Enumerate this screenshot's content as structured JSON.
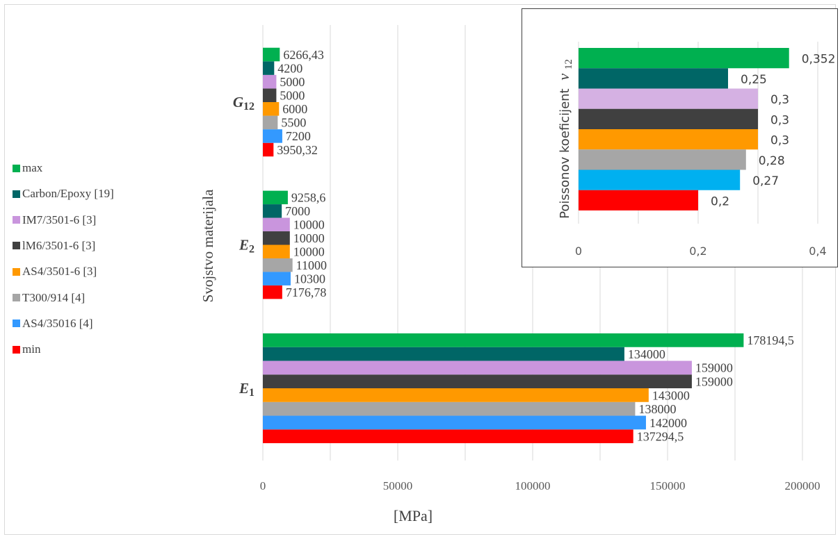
{
  "chart_data": [
    {
      "type": "bar",
      "orientation": "horizontal",
      "categories": [
        "E1",
        "E2",
        "G12"
      ],
      "category_labels": [
        {
          "base": "E",
          "sub": "1"
        },
        {
          "base": "E",
          "sub": "2"
        },
        {
          "base": "G",
          "sub": "12"
        }
      ],
      "ylabel": "Svojstvo materijala",
      "xlabel": "[MPa]",
      "xlim": [
        0,
        200000
      ],
      "xticks": [
        0,
        50000,
        100000,
        150000,
        200000
      ],
      "xtick_labels": [
        "0",
        "50000",
        "100000",
        "150000",
        "200000"
      ],
      "grid": true,
      "legend_position": "left",
      "series": [
        {
          "name": "min",
          "color": "#ff0000",
          "values": [
            137294.5,
            7176.78,
            3950.32
          ],
          "labels": [
            "137294,5",
            "7176,78",
            "3950,32"
          ]
        },
        {
          "name": "AS4/35016 [4]",
          "color": "#3399ff",
          "values": [
            142000,
            10300,
            7200
          ],
          "labels": [
            "142000",
            "10300",
            "7200"
          ]
        },
        {
          "name": "T300/914 [4]",
          "color": "#a6a6a6",
          "values": [
            138000,
            11000,
            5500
          ],
          "labels": [
            "138000",
            "11000",
            "5500"
          ]
        },
        {
          "name": "AS4/3501-6 [3]",
          "color": "#ff9900",
          "values": [
            143000,
            10000,
            6000
          ],
          "labels": [
            "143000",
            "10000",
            "6000"
          ]
        },
        {
          "name": "lM6/3501-6 [3]",
          "color": "#404040",
          "values": [
            159000,
            10000,
            5000
          ],
          "labels": [
            "159000",
            "10000",
            "5000"
          ]
        },
        {
          "name": "IM7/3501-6 [3]",
          "color": "#c995dd",
          "values": [
            159000,
            10000,
            5000
          ],
          "labels": [
            "159000",
            "10000",
            "5000"
          ]
        },
        {
          "name": "Carbon/Epoxy [19]",
          "color": "#006666",
          "values": [
            134000,
            7000,
            4200
          ],
          "labels": [
            "134000",
            "7000",
            "4200"
          ]
        },
        {
          "name": "max",
          "color": "#00b050",
          "values": [
            178194.5,
            9258.6,
            6266.43
          ],
          "labels": [
            "178194,5",
            "9258,6",
            "6266,43"
          ]
        }
      ]
    },
    {
      "type": "bar",
      "orientation": "horizontal",
      "ylabel": "Poissonov koeficijent",
      "ylabel_symbol": {
        "base": "ν",
        "sub": "12"
      },
      "xlim": [
        0,
        0.4
      ],
      "xticks": [
        0,
        0.2,
        0.4
      ],
      "xtick_labels": [
        "0",
        "0,2",
        "0,4"
      ],
      "grid": true,
      "series": [
        {
          "name": "min",
          "color": "#ff0000",
          "value": 0.2,
          "label": "0,2"
        },
        {
          "name": "AS4/35016 [4]",
          "color": "#00b0f0",
          "value": 0.27,
          "label": "0,27"
        },
        {
          "name": "T300/914 [4]",
          "color": "#a6a6a6",
          "value": 0.28,
          "label": "0,28"
        },
        {
          "name": "AS4/3501-6 [3]",
          "color": "#ff9900",
          "value": 0.3,
          "label": "0,3"
        },
        {
          "name": "lM6/3501-6 [3]",
          "color": "#404040",
          "value": 0.3,
          "label": "0,3"
        },
        {
          "name": "IM7/3501-6 [3]",
          "color": "#d5b1e3",
          "value": 0.3,
          "label": "0,3"
        },
        {
          "name": "Carbon/Epoxy [19]",
          "color": "#006666",
          "value": 0.25,
          "label": "0,25"
        },
        {
          "name": "max",
          "color": "#00b050",
          "value": 0.352,
          "label": "0,352"
        }
      ]
    }
  ]
}
